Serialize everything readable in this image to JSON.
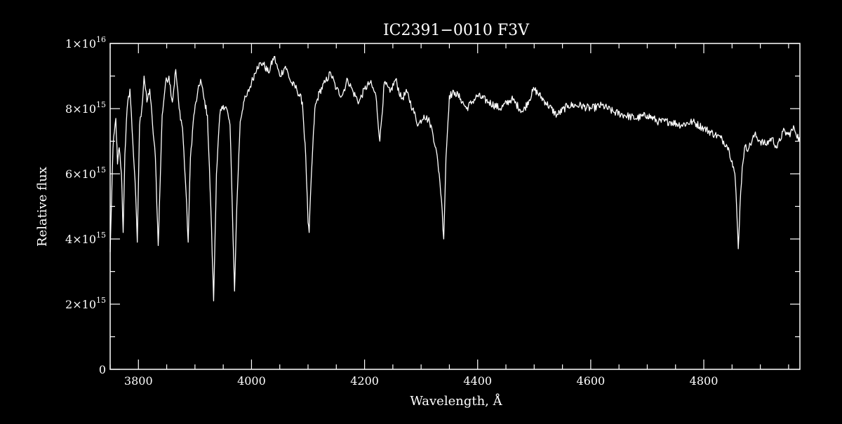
{
  "chart_data": {
    "type": "line",
    "title": "IC2391−0010   F3V",
    "xlabel": "Wavelength, Å",
    "ylabel": "Relative flux",
    "xlim": [
      3750,
      4970
    ],
    "ylim": [
      0,
      1e+16
    ],
    "x_ticks": [
      {
        "value": 3800,
        "label": "3800"
      },
      {
        "value": 4000,
        "label": "4000"
      },
      {
        "value": 4200,
        "label": "4200"
      },
      {
        "value": 4400,
        "label": "4400"
      },
      {
        "value": 4600,
        "label": "4600"
      },
      {
        "value": 4800,
        "label": "4800"
      }
    ],
    "y_ticks": [
      {
        "value": 0,
        "mant": "0",
        "exp": ""
      },
      {
        "value": 2000000000000000.0,
        "mant": "2×10",
        "exp": "15"
      },
      {
        "value": 4000000000000000.0,
        "mant": "4×10",
        "exp": "15"
      },
      {
        "value": 6000000000000000.0,
        "mant": "6×10",
        "exp": "15"
      },
      {
        "value": 8000000000000000.0,
        "mant": "8×10",
        "exp": "15"
      },
      {
        "value": 1e+16,
        "mant": "1×10",
        "exp": "16"
      }
    ],
    "grid": false,
    "line_color": "#ffffff",
    "background_color": "#000000",
    "series": [
      {
        "x": [
          3750,
          3755,
          3760,
          3763,
          3766,
          3770,
          3773,
          3776,
          3780,
          3785,
          3790,
          3794,
          3798,
          3802,
          3806,
          3810,
          3815,
          3820,
          3825,
          3830,
          3835,
          3838,
          3842,
          3848,
          3854,
          3860,
          3866,
          3872,
          3878,
          3884,
          3888,
          3892,
          3898,
          3904,
          3910,
          3916,
          3922,
          3928,
          3933,
          3938,
          3944,
          3950,
          3956,
          3962,
          3966,
          3970,
          3974,
          3980,
          3986,
          3992,
          4000,
          4010,
          4020,
          4030,
          4040,
          4050,
          4060,
          4070,
          4080,
          4090,
          4096,
          4100,
          4102,
          4106,
          4112,
          4120,
          4130,
          4140,
          4150,
          4160,
          4170,
          4180,
          4190,
          4200,
          4210,
          4220,
          4227,
          4235,
          4245,
          4255,
          4265,
          4275,
          4285,
          4295,
          4305,
          4315,
          4320,
          4326,
          4332,
          4336,
          4340,
          4344,
          4350,
          4360,
          4370,
          4380,
          4390,
          4400,
          4420,
          4440,
          4460,
          4480,
          4500,
          4520,
          4540,
          4560,
          4580,
          4600,
          4620,
          4640,
          4660,
          4680,
          4700,
          4720,
          4740,
          4760,
          4780,
          4800,
          4820,
          4830,
          4840,
          4845,
          4850,
          4855,
          4858,
          4861,
          4864,
          4868,
          4872,
          4880,
          4890,
          4900,
          4910,
          4920,
          4930,
          4940,
          4950,
          4960,
          4970
        ],
        "y": [
          3600000000000000.0,
          6800000000000000.0,
          7700000000000000.0,
          6300000000000000.0,
          6800000000000000.0,
          6000000000000000.0,
          4200000000000000.0,
          6600000000000000.0,
          8000000000000000.0,
          8600000000000000.0,
          7000000000000000.0,
          5800000000000000.0,
          3900000000000000.0,
          7500000000000000.0,
          8000000000000000.0,
          9000000000000000.0,
          8200000000000000.0,
          8600000000000000.0,
          7500000000000000.0,
          6500000000000000.0,
          3800000000000000.0,
          5500000000000000.0,
          7800000000000000.0,
          8800000000000000.0,
          9000000000000000.0,
          8200000000000000.0,
          9200000000000000.0,
          8000000000000000.0,
          7400000000000000.0,
          5500000000000000.0,
          3900000000000000.0,
          6500000000000000.0,
          7800000000000000.0,
          8400000000000000.0,
          8900000000000000.0,
          8300000000000000.0,
          7800000000000000.0,
          5000000000000000.0,
          2100000000000000.0,
          6000000000000000.0,
          7800000000000000.0,
          8100000000000000.0,
          8000000000000000.0,
          7500000000000000.0,
          5000000000000000.0,
          2400000000000000.0,
          5000000000000000.0,
          7600000000000000.0,
          8200000000000000.0,
          8400000000000000.0,
          8800000000000000.0,
          9300000000000000.0,
          9400000000000000.0,
          9100000000000000.0,
          9600000000000000.0,
          9000000000000000.0,
          9300000000000000.0,
          8800000000000000.0,
          8600000000000000.0,
          8200000000000000.0,
          6500000000000000.0,
          4500000000000000.0,
          4200000000000000.0,
          6000000000000000.0,
          8000000000000000.0,
          8500000000000000.0,
          8800000000000000.0,
          9100000000000000.0,
          8600000000000000.0,
          8400000000000000.0,
          8900000000000000.0,
          8500000000000000.0,
          8200000000000000.0,
          8600000000000000.0,
          8800000000000000.0,
          8400000000000000.0,
          7000000000000000.0,
          8800000000000000.0,
          8500000000000000.0,
          8900000000000000.0,
          8300000000000000.0,
          8500000000000000.0,
          8000000000000000.0,
          7500000000000000.0,
          7800000000000000.0,
          7600000000000000.0,
          7300000000000000.0,
          6800000000000000.0,
          6000000000000000.0,
          5200000000000000.0,
          4000000000000000.0,
          6500000000000000.0,
          8400000000000000.0,
          8500000000000000.0,
          8300000000000000.0,
          8000000000000000.0,
          8200000000000000.0,
          8400000000000000.0,
          8200000000000000.0,
          8000000000000000.0,
          8300000000000000.0,
          7900000000000000.0,
          8600000000000000.0,
          8200000000000000.0,
          7800000000000000.0,
          8100000000000000.0,
          8100000000000000.0,
          8000000000000000.0,
          8100000000000000.0,
          7900000000000000.0,
          7800000000000000.0,
          7700000000000000.0,
          7800000000000000.0,
          7600000000000000.0,
          7600000000000000.0,
          7500000000000000.0,
          7600000000000000.0,
          7400000000000000.0,
          7200000000000000.0,
          7100000000000000.0,
          6900000000000000.0,
          6700000000000000.0,
          6400000000000000.0,
          6000000000000000.0,
          5000000000000000.0,
          3700000000000000.0,
          5000000000000000.0,
          6200000000000000.0,
          6800000000000000.0,
          6800000000000000.0,
          7200000000000000.0,
          7000000000000000.0,
          6900000000000000.0,
          7100000000000000.0,
          6800000000000000.0,
          7300000000000000.0,
          7200000000000000.0,
          7400000000000000.0,
          7000000000000000.0
        ]
      }
    ]
  }
}
